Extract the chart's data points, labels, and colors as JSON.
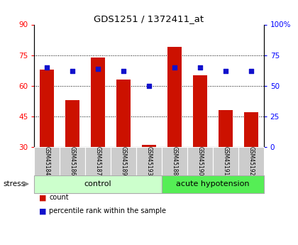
{
  "title": "GDS1251 / 1372411_at",
  "samples": [
    "GSM45184",
    "GSM45186",
    "GSM45187",
    "GSM45189",
    "GSM45193",
    "GSM45188",
    "GSM45190",
    "GSM45191",
    "GSM45192"
  ],
  "count_values": [
    68,
    53,
    74,
    63,
    31,
    79,
    65,
    48,
    47
  ],
  "percentile_values": [
    65,
    62,
    64,
    62,
    50,
    65,
    65,
    62,
    62
  ],
  "ylim_left": [
    30,
    90
  ],
  "ylim_right": [
    0,
    100
  ],
  "yticks_left": [
    30,
    45,
    60,
    75,
    90
  ],
  "yticks_right": [
    0,
    25,
    50,
    75,
    100
  ],
  "bar_color": "#cc1100",
  "dot_color": "#1111cc",
  "n_control": 5,
  "n_acute": 4,
  "control_label": "control",
  "acute_label": "acute hypotension",
  "stress_label": "stress",
  "legend_count": "count",
  "legend_percentile": "percentile rank within the sample",
  "grid_yticks": [
    45,
    60,
    75
  ],
  "bar_width": 0.55,
  "tick_label_bg": "#cccccc",
  "control_bg": "#ccffcc",
  "acute_bg": "#55ee55",
  "plot_bg": "#ffffff"
}
